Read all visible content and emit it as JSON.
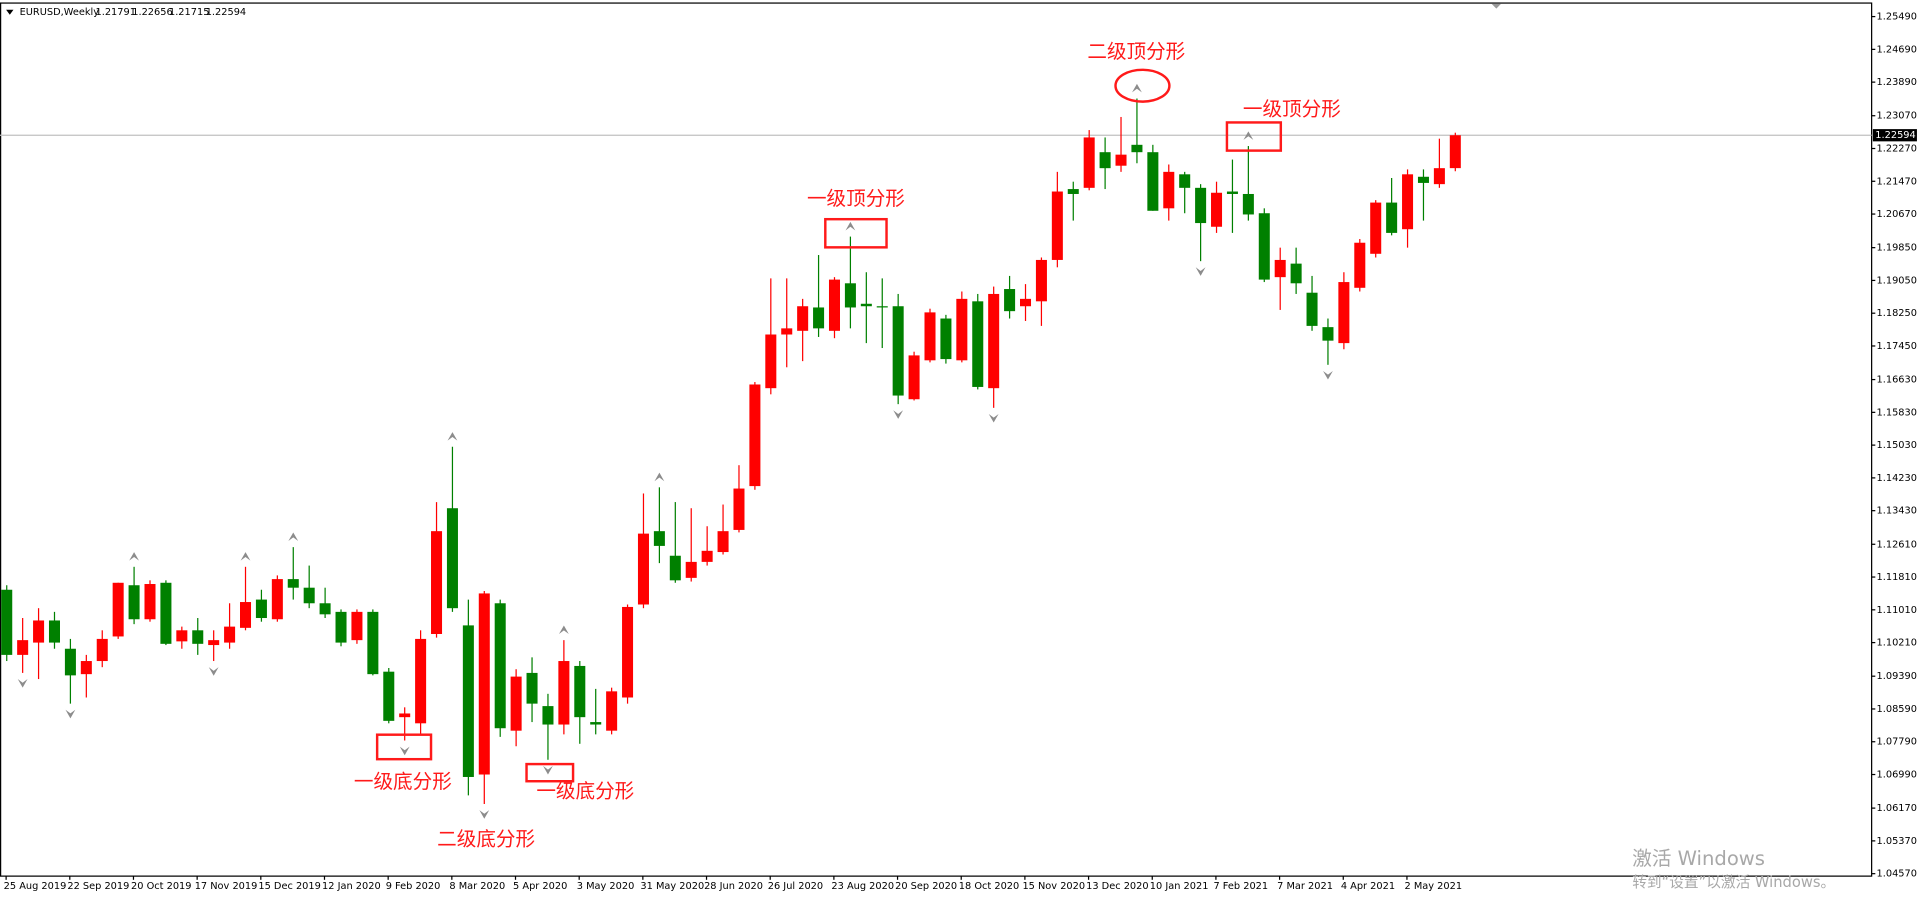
{
  "chart_data": {
    "type": "candlestick",
    "symbol": "EURUSD,Weekly",
    "x": [
      "25 Aug 2019",
      null,
      null,
      null,
      "22 Sep 2019",
      null,
      null,
      null,
      "20 Oct 2019",
      null,
      null,
      null,
      "17 Nov 2019",
      null,
      null,
      null,
      "15 Dec 2019",
      null,
      null,
      null,
      "12 Jan 2020",
      null,
      null,
      null,
      "9 Feb 2020",
      null,
      null,
      null,
      "8 Mar 2020",
      null,
      null,
      null,
      "5 Apr 2020",
      null,
      null,
      null,
      "3 May 2020",
      null,
      null,
      null,
      "31 May 2020",
      null,
      null,
      null,
      "28 Jun 2020",
      null,
      null,
      null,
      "26 Jul 2020",
      null,
      null,
      null,
      "23 Aug 2020",
      null,
      null,
      null,
      "20 Sep 2020",
      null,
      null,
      null,
      "18 Oct 2020",
      null,
      null,
      null,
      "15 Nov 2020",
      null,
      null,
      null,
      "13 Dec 2020",
      null,
      null,
      null,
      "10 Jan 2021",
      null,
      null,
      null,
      "7 Feb 2021",
      null,
      null,
      null,
      "7 Mar 2021",
      null,
      null,
      null,
      "4 Apr 2021",
      null,
      null,
      null,
      "2 May 2021",
      null,
      null,
      null
    ],
    "open": [
      1.115,
      1.0991,
      1.1021,
      1.1075,
      1.1006,
      1.0944,
      1.0976,
      1.1036,
      1.1161,
      1.1078,
      1.1167,
      1.1024,
      1.1051,
      1.1015,
      1.1021,
      1.1057,
      1.1126,
      1.1078,
      1.1176,
      1.1155,
      1.1117,
      1.1096,
      1.1027,
      1.1096,
      1.095,
      1.0839,
      1.0824,
      1.1042,
      1.1349,
      1.1063,
      1.0699,
      1.1117,
      1.0806,
      1.0947,
      1.0866,
      1.0821,
      1.0964,
      1.0827,
      1.0806,
      1.0887,
      1.1114,
      1.1293,
      1.1233,
      1.1179,
      1.1218,
      1.1242,
      1.1296,
      1.1403,
      1.1642,
      1.1773,
      1.1782,
      1.1839,
      1.1782,
      1.1898,
      1.1848,
      1.1842,
      1.1842,
      1.1615,
      1.171,
      1.1812,
      1.171,
      1.1854,
      1.1642,
      1.1884,
      1.1842,
      1.1854,
      1.1955,
      1.2128,
      1.2131,
      1.2218,
      1.2185,
      1.2236,
      1.2218,
      1.2081,
      1.2164,
      1.2131,
      1.2036,
      1.2122,
      1.2116,
      1.2069,
      1.1913,
      1.1946,
      1.1875,
      1.1791,
      1.1752,
      1.1887,
      1.197,
      1.2095,
      1.203,
      1.2158,
      1.214,
      1.21791
    ],
    "high": [
      1.1161,
      1.1081,
      1.1105,
      1.1096,
      1.103,
      1.0991,
      1.1051,
      1.1167,
      1.1206,
      1.1173,
      1.1173,
      1.106,
      1.1081,
      1.1051,
      1.1117,
      1.1206,
      1.115,
      1.1185,
      1.1254,
      1.1209,
      1.1155,
      1.1102,
      1.1102,
      1.1102,
      1.0959,
      1.0863,
      1.1051,
      1.1364,
      1.1499,
      1.1126,
      1.1147,
      1.1126,
      1.0956,
      1.0985,
      1.0896,
      1.1027,
      1.0976,
      1.0908,
      1.0911,
      1.1114,
      1.1385,
      1.14,
      1.1364,
      1.1349,
      1.1305,
      1.1358,
      1.1454,
      1.1657,
      1.191,
      1.191,
      1.186,
      1.1967,
      1.1913,
      1.2012,
      1.1925,
      1.191,
      1.1872,
      1.1731,
      1.1836,
      1.1821,
      1.1878,
      1.1872,
      1.189,
      1.1916,
      1.1896,
      1.1961,
      1.217,
      1.2146,
      1.2272,
      1.2254,
      1.2304,
      1.2349,
      1.2236,
      1.2188,
      1.217,
      1.214,
      1.2146,
      1.22,
      1.2233,
      1.2081,
      1.1985,
      1.1985,
      1.1916,
      1.1812,
      1.1925,
      1.2006,
      1.2101,
      1.2155,
      1.2176,
      1.2176,
      1.2251,
      1.22656
    ],
    "low": [
      1.0976,
      1.0947,
      1.0932,
      1.1006,
      1.0872,
      1.0887,
      1.0961,
      1.103,
      1.1066,
      1.1072,
      1.1015,
      1.1006,
      1.0991,
      1.0976,
      1.1006,
      1.1051,
      1.1072,
      1.1072,
      1.1126,
      1.1105,
      1.1081,
      1.1012,
      1.1018,
      1.0941,
      1.0824,
      1.0782,
      1.0797,
      1.1033,
      1.1096,
      1.0648,
      1.0627,
      1.0791,
      1.0768,
      1.0827,
      1.0735,
      1.0797,
      1.0774,
      1.0797,
      1.0797,
      1.0872,
      1.1105,
      1.1215,
      1.1167,
      1.117,
      1.1209,
      1.1236,
      1.129,
      1.1394,
      1.1627,
      1.1693,
      1.1708,
      1.1767,
      1.1764,
      1.1788,
      1.1752,
      1.174,
      1.1603,
      1.1612,
      1.1705,
      1.1702,
      1.1705,
      1.1639,
      1.1594,
      1.1812,
      1.1806,
      1.1794,
      1.1937,
      1.2051,
      1.2125,
      1.2128,
      1.217,
      1.2191,
      1.2075,
      1.2051,
      1.2069,
      1.1952,
      1.2021,
      1.2021,
      1.2051,
      1.1901,
      1.1833,
      1.1872,
      1.1782,
      1.1699,
      1.1737,
      1.1878,
      1.1961,
      1.2015,
      1.1985,
      1.2051,
      1.2131,
      1.21715
    ],
    "close": [
      1.0991,
      1.1027,
      1.1075,
      1.1021,
      1.0941,
      1.0976,
      1.103,
      1.1167,
      1.1078,
      1.1164,
      1.1018,
      1.1051,
      1.1018,
      1.1027,
      1.106,
      1.112,
      1.1081,
      1.1176,
      1.1155,
      1.1117,
      1.109,
      1.1021,
      1.1096,
      1.0944,
      1.083,
      1.0848,
      1.103,
      1.1293,
      1.1105,
      1.0693,
      1.1141,
      1.0812,
      1.0938,
      1.0872,
      1.0821,
      1.0976,
      1.0839,
      1.0821,
      1.0902,
      1.1108,
      1.1287,
      1.1257,
      1.1173,
      1.1218,
      1.1245,
      1.1293,
      1.1397,
      1.1651,
      1.1773,
      1.1788,
      1.1842,
      1.1788,
      1.1907,
      1.1839,
      1.1842,
      1.1839,
      1.1624,
      1.1722,
      1.1827,
      1.1713,
      1.186,
      1.1645,
      1.1872,
      1.183,
      1.186,
      1.1955,
      1.2122,
      1.2116,
      1.2254,
      1.2179,
      1.2212,
      1.2218,
      1.2075,
      1.217,
      1.2131,
      1.2045,
      1.2119,
      1.2116,
      1.2066,
      1.1907,
      1.1955,
      1.1898,
      1.1794,
      1.1758,
      1.1901,
      1.1997,
      1.2095,
      1.2021,
      1.2164,
      1.2143,
      1.2179,
      1.22594
    ],
    "up_color": "#ff0000",
    "down_color": "#008000",
    "fractals_up": [
      8,
      15,
      18,
      28,
      35,
      41,
      53,
      71,
      78
    ],
    "fractals_down": [
      1,
      4,
      13,
      25,
      30,
      34,
      56,
      62,
      75,
      83
    ],
    "ylim": [
      1.0451,
      1.2582
    ],
    "yticks": [
      {
        "value": 1.2549,
        "label": "1.25490"
      },
      {
        "value": 1.2469,
        "label": "1.24690"
      },
      {
        "value": 1.2389,
        "label": "1.23890"
      },
      {
        "value": 1.2307,
        "label": "1.23070"
      },
      {
        "value": 1.2227,
        "label": "1.22270"
      },
      {
        "value": 1.2147,
        "label": "1.21470"
      },
      {
        "value": 1.2067,
        "label": "1.20670"
      },
      {
        "value": 1.1985,
        "label": "1.19850"
      },
      {
        "value": 1.1905,
        "label": "1.19050"
      },
      {
        "value": 1.1825,
        "label": "1.18250"
      },
      {
        "value": 1.1745,
        "label": "1.17450"
      },
      {
        "value": 1.1663,
        "label": "1.16630"
      },
      {
        "value": 1.1583,
        "label": "1.15830"
      },
      {
        "value": 1.1503,
        "label": "1.15030"
      },
      {
        "value": 1.1423,
        "label": "1.14230"
      },
      {
        "value": 1.1343,
        "label": "1.13430"
      },
      {
        "value": 1.1261,
        "label": "1.12610"
      },
      {
        "value": 1.1181,
        "label": "1.11810"
      },
      {
        "value": 1.1101,
        "label": "1.11010"
      },
      {
        "value": 1.1021,
        "label": "1.10210"
      },
      {
        "value": 1.0939,
        "label": "1.09390"
      },
      {
        "value": 1.0859,
        "label": "1.08590"
      },
      {
        "value": 1.0779,
        "label": "1.07790"
      },
      {
        "value": 1.0699,
        "label": "1.06990"
      },
      {
        "value": 1.0617,
        "label": "1.06170"
      },
      {
        "value": 1.0537,
        "label": "1.05370"
      },
      {
        "value": 1.0457,
        "label": "1.04570"
      }
    ],
    "annotations": [
      "二级顶分形",
      "一级顶分形",
      "一级顶分形",
      "一级底分形",
      "一级底分形",
      "二级底分形"
    ]
  },
  "watermark": {
    "title": "激活 Windows",
    "subtitle": "转到“设置”以激活 Windows。"
  }
}
